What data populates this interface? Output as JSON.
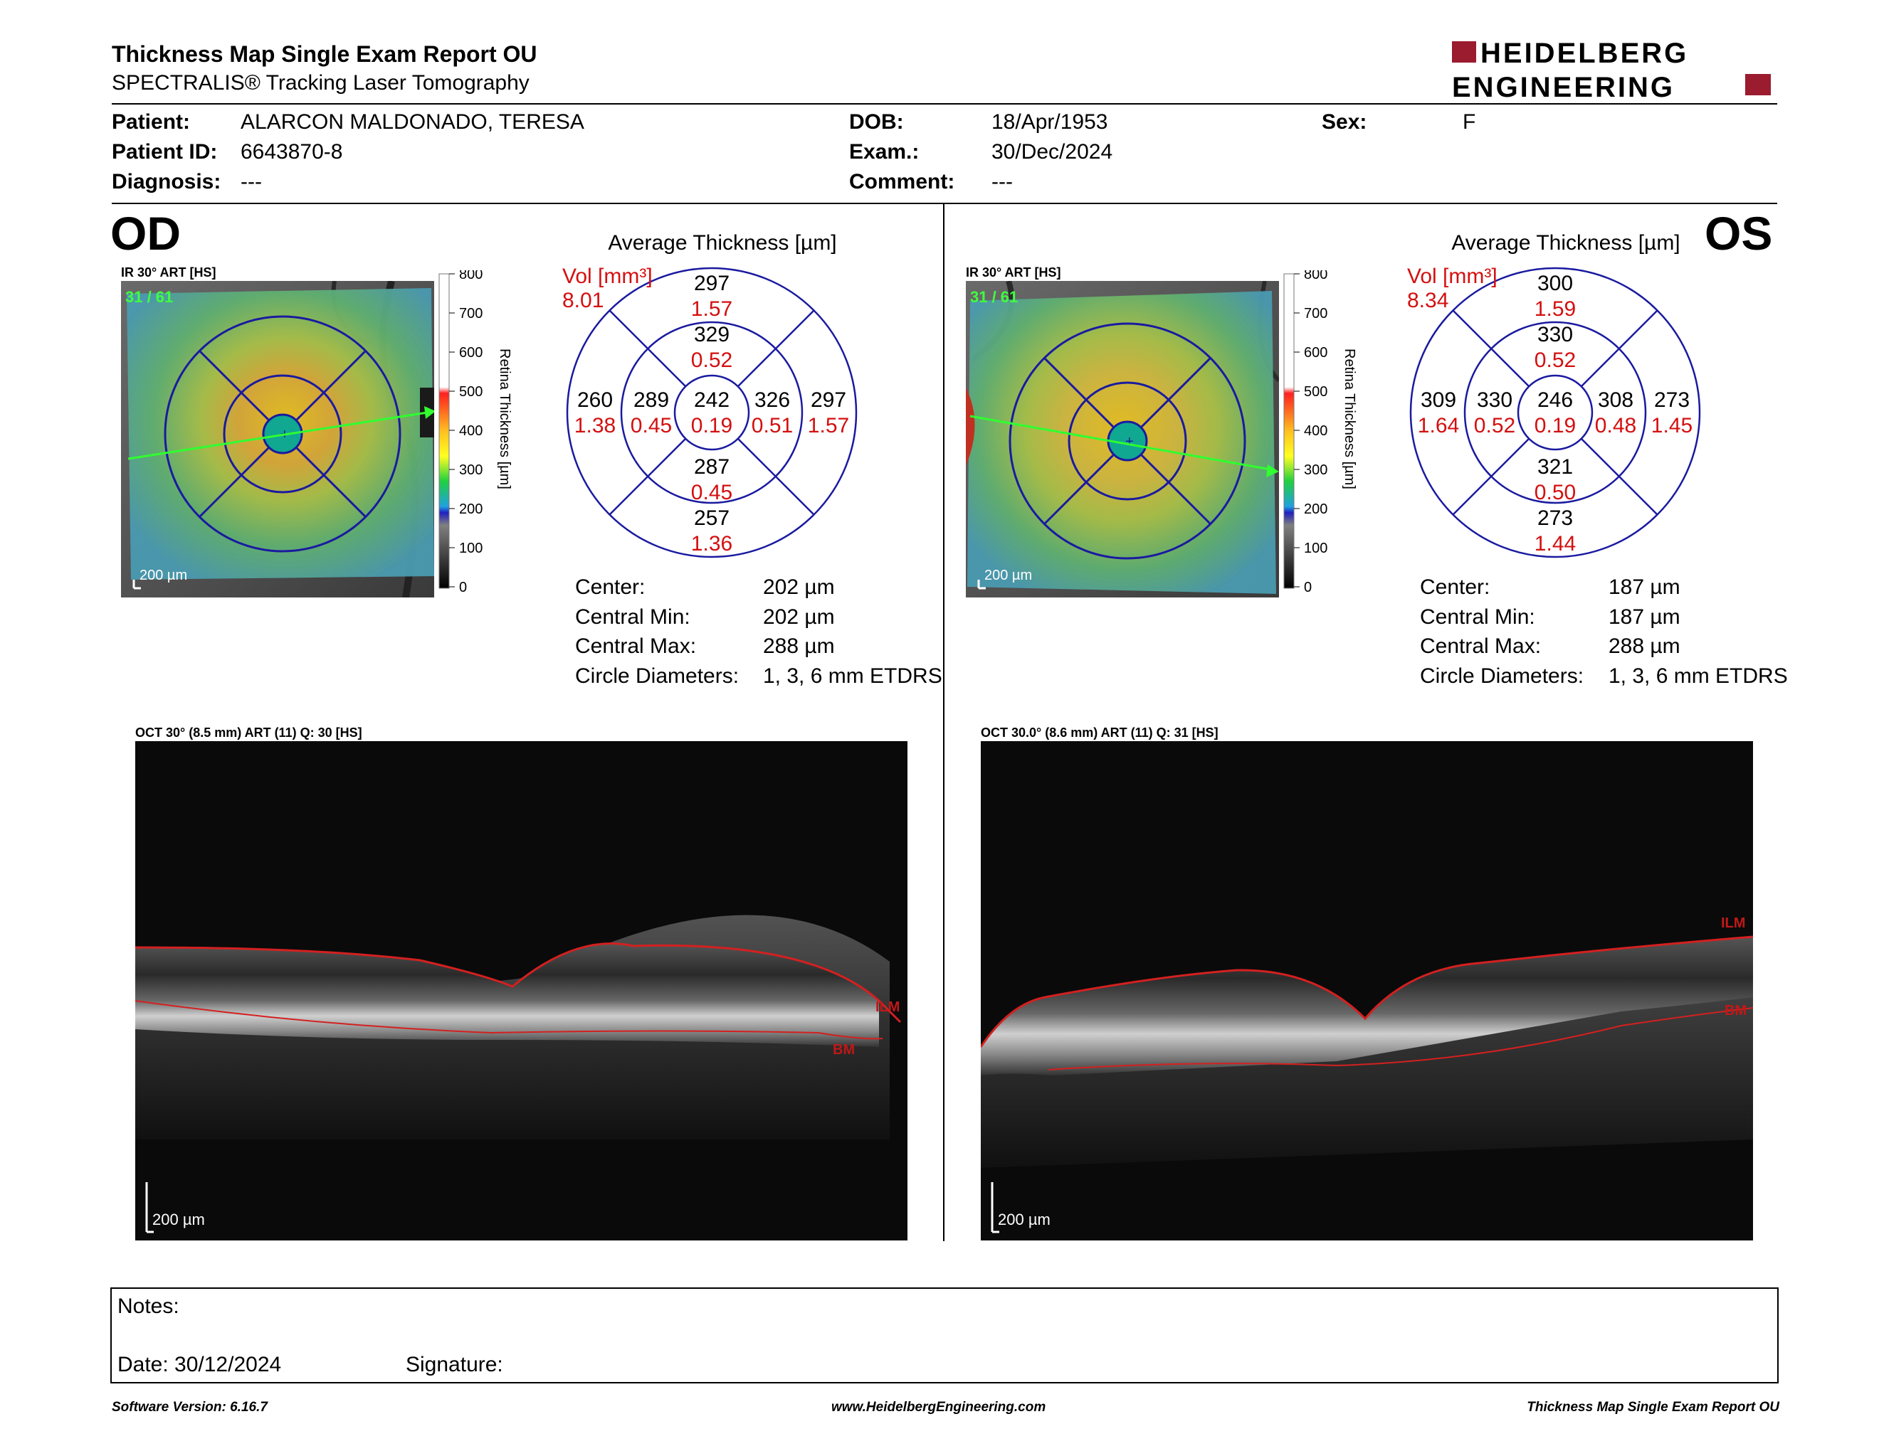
{
  "report": {
    "title": "Thickness Map Single Exam Report OU",
    "subtitle": "SPECTRALIS® Tracking Laser Tomography",
    "brand_top": "HEIDELBERG",
    "brand_bottom": "ENGINEERING",
    "brand_color": "#9b1b2f"
  },
  "patient": {
    "patient_label": "Patient:",
    "patient_value": "ALARCON MALDONADO, TERESA",
    "id_label": "Patient ID:",
    "id_value": "6643870-8",
    "diag_label": "Diagnosis:",
    "diag_value": "---",
    "dob_label": "DOB:",
    "dob_value": "18/Apr/1953",
    "exam_label": "Exam.:",
    "exam_value": "30/Dec/2024",
    "comment_label": "Comment:",
    "comment_value": "---",
    "sex_label": "Sex:",
    "sex_value": "F"
  },
  "od": {
    "eye": "OD",
    "ir_label": "IR 30° ART [HS]",
    "frame": "31 / 61",
    "scale": "200 µm",
    "avg_title": "Average Thickness [µm]",
    "vol_label": "Vol [mm³]",
    "vol_total": "8.01",
    "sectors": {
      "center": [
        "242",
        "0.19"
      ],
      "inner_sup": [
        "329",
        "0.52"
      ],
      "inner_inf": [
        "287",
        "0.45"
      ],
      "inner_left": [
        "289",
        "0.45"
      ],
      "inner_right": [
        "326",
        "0.51"
      ],
      "outer_sup": [
        "297",
        "1.57"
      ],
      "outer_inf": [
        "257",
        "1.36"
      ],
      "outer_left": [
        "260",
        "1.38"
      ],
      "outer_right": [
        "297",
        "1.57"
      ]
    },
    "stats": [
      {
        "label": "Center:",
        "value": "202 µm"
      },
      {
        "label": "Central Min:",
        "value": "202 µm"
      },
      {
        "label": "Central Max:",
        "value": "288 µm"
      },
      {
        "label": "Circle Diameters:",
        "value": "1, 3, 6 mm ETDRS"
      }
    ],
    "oct_label": "OCT 30° (8.5 mm) ART (11) Q: 30 [HS]",
    "oct_scale": "200 µm",
    "ilm": "ILM",
    "bm": "BM"
  },
  "os": {
    "eye": "OS",
    "ir_label": "IR 30° ART [HS]",
    "frame": "31 / 61",
    "scale": "200 µm",
    "avg_title": "Average Thickness [µm]",
    "vol_label": "Vol [mm³]",
    "vol_total": "8.34",
    "sectors": {
      "center": [
        "246",
        "0.19"
      ],
      "inner_sup": [
        "330",
        "0.52"
      ],
      "inner_inf": [
        "321",
        "0.50"
      ],
      "inner_left": [
        "330",
        "0.52"
      ],
      "inner_right": [
        "308",
        "0.48"
      ],
      "outer_sup": [
        "300",
        "1.59"
      ],
      "outer_inf": [
        "273",
        "1.44"
      ],
      "outer_left": [
        "309",
        "1.64"
      ],
      "outer_right": [
        "273",
        "1.45"
      ]
    },
    "stats": [
      {
        "label": "Center:",
        "value": "187 µm"
      },
      {
        "label": "Central Min:",
        "value": "187 µm"
      },
      {
        "label": "Central Max:",
        "value": "288 µm"
      },
      {
        "label": "Circle Diameters:",
        "value": "1, 3, 6 mm ETDRS"
      }
    ],
    "oct_label": "OCT 30.0° (8.6 mm) ART (11) Q: 31 [HS]",
    "oct_scale": "200 µm",
    "ilm": "ILM",
    "bm": "BM"
  },
  "colorbar": {
    "ticks": [
      "800",
      "700",
      "600",
      "500",
      "400",
      "300",
      "200",
      "100",
      "0"
    ],
    "title": "Retina Thickness [µm]"
  },
  "notes": {
    "notes_label": "Notes:",
    "date_label": "Date: 30/12/2024",
    "signature_label": "Signature:"
  },
  "footer": {
    "left": "Software Version: 6.16.7",
    "center": "www.HeidelbergEngineering.com",
    "right": "Thickness Map Single Exam Report OU"
  }
}
